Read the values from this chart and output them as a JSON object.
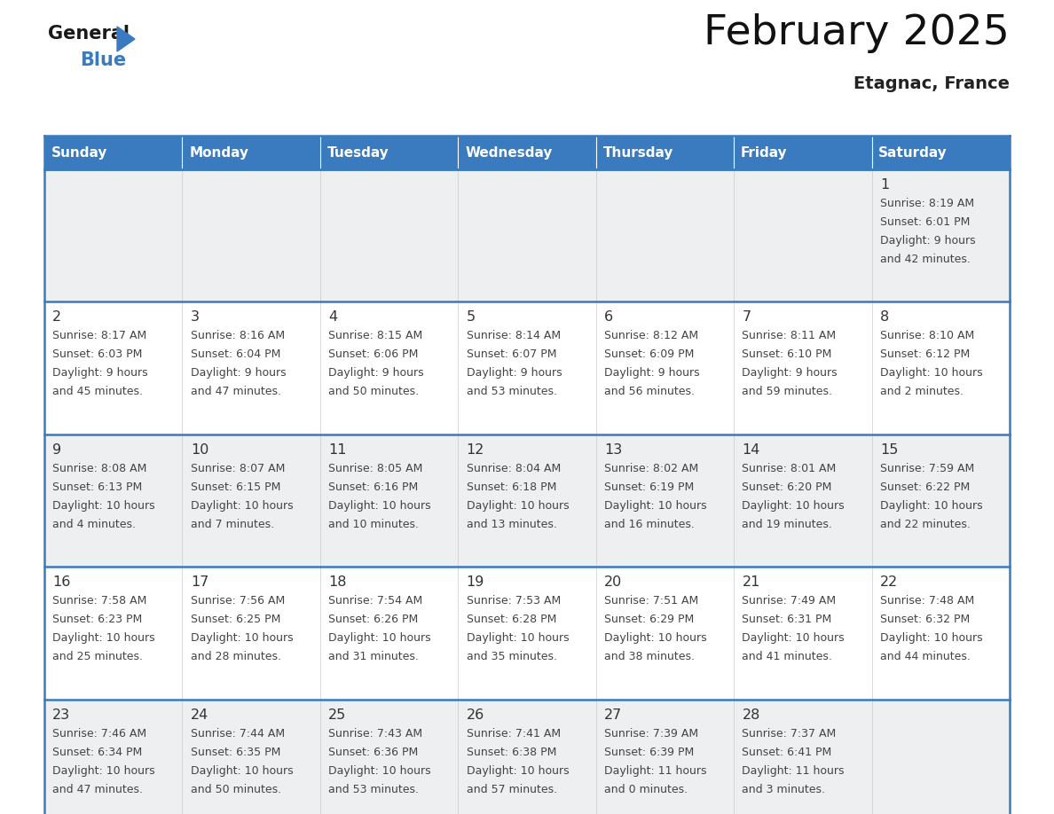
{
  "title": "February 2025",
  "subtitle": "Etagnac, France",
  "header_color": "#3a7bbf",
  "header_text_color": "#ffffff",
  "days_of_week": [
    "Sunday",
    "Monday",
    "Tuesday",
    "Wednesday",
    "Thursday",
    "Friday",
    "Saturday"
  ],
  "cell_bg_even": "#eeeff0",
  "cell_bg_odd": "#ffffff",
  "border_color": "#3a7bbf",
  "day_number_color": "#333333",
  "text_color": "#444444",
  "calendar": [
    [
      null,
      null,
      null,
      null,
      null,
      null,
      {
        "day": 1,
        "sunrise": "8:19 AM",
        "sunset": "6:01 PM",
        "daylight_line1": "Daylight: 9 hours",
        "daylight_line2": "and 42 minutes."
      }
    ],
    [
      {
        "day": 2,
        "sunrise": "8:17 AM",
        "sunset": "6:03 PM",
        "daylight_line1": "Daylight: 9 hours",
        "daylight_line2": "and 45 minutes."
      },
      {
        "day": 3,
        "sunrise": "8:16 AM",
        "sunset": "6:04 PM",
        "daylight_line1": "Daylight: 9 hours",
        "daylight_line2": "and 47 minutes."
      },
      {
        "day": 4,
        "sunrise": "8:15 AM",
        "sunset": "6:06 PM",
        "daylight_line1": "Daylight: 9 hours",
        "daylight_line2": "and 50 minutes."
      },
      {
        "day": 5,
        "sunrise": "8:14 AM",
        "sunset": "6:07 PM",
        "daylight_line1": "Daylight: 9 hours",
        "daylight_line2": "and 53 minutes."
      },
      {
        "day": 6,
        "sunrise": "8:12 AM",
        "sunset": "6:09 PM",
        "daylight_line1": "Daylight: 9 hours",
        "daylight_line2": "and 56 minutes."
      },
      {
        "day": 7,
        "sunrise": "8:11 AM",
        "sunset": "6:10 PM",
        "daylight_line1": "Daylight: 9 hours",
        "daylight_line2": "and 59 minutes."
      },
      {
        "day": 8,
        "sunrise": "8:10 AM",
        "sunset": "6:12 PM",
        "daylight_line1": "Daylight: 10 hours",
        "daylight_line2": "and 2 minutes."
      }
    ],
    [
      {
        "day": 9,
        "sunrise": "8:08 AM",
        "sunset": "6:13 PM",
        "daylight_line1": "Daylight: 10 hours",
        "daylight_line2": "and 4 minutes."
      },
      {
        "day": 10,
        "sunrise": "8:07 AM",
        "sunset": "6:15 PM",
        "daylight_line1": "Daylight: 10 hours",
        "daylight_line2": "and 7 minutes."
      },
      {
        "day": 11,
        "sunrise": "8:05 AM",
        "sunset": "6:16 PM",
        "daylight_line1": "Daylight: 10 hours",
        "daylight_line2": "and 10 minutes."
      },
      {
        "day": 12,
        "sunrise": "8:04 AM",
        "sunset": "6:18 PM",
        "daylight_line1": "Daylight: 10 hours",
        "daylight_line2": "and 13 minutes."
      },
      {
        "day": 13,
        "sunrise": "8:02 AM",
        "sunset": "6:19 PM",
        "daylight_line1": "Daylight: 10 hours",
        "daylight_line2": "and 16 minutes."
      },
      {
        "day": 14,
        "sunrise": "8:01 AM",
        "sunset": "6:20 PM",
        "daylight_line1": "Daylight: 10 hours",
        "daylight_line2": "and 19 minutes."
      },
      {
        "day": 15,
        "sunrise": "7:59 AM",
        "sunset": "6:22 PM",
        "daylight_line1": "Daylight: 10 hours",
        "daylight_line2": "and 22 minutes."
      }
    ],
    [
      {
        "day": 16,
        "sunrise": "7:58 AM",
        "sunset": "6:23 PM",
        "daylight_line1": "Daylight: 10 hours",
        "daylight_line2": "and 25 minutes."
      },
      {
        "day": 17,
        "sunrise": "7:56 AM",
        "sunset": "6:25 PM",
        "daylight_line1": "Daylight: 10 hours",
        "daylight_line2": "and 28 minutes."
      },
      {
        "day": 18,
        "sunrise": "7:54 AM",
        "sunset": "6:26 PM",
        "daylight_line1": "Daylight: 10 hours",
        "daylight_line2": "and 31 minutes."
      },
      {
        "day": 19,
        "sunrise": "7:53 AM",
        "sunset": "6:28 PM",
        "daylight_line1": "Daylight: 10 hours",
        "daylight_line2": "and 35 minutes."
      },
      {
        "day": 20,
        "sunrise": "7:51 AM",
        "sunset": "6:29 PM",
        "daylight_line1": "Daylight: 10 hours",
        "daylight_line2": "and 38 minutes."
      },
      {
        "day": 21,
        "sunrise": "7:49 AM",
        "sunset": "6:31 PM",
        "daylight_line1": "Daylight: 10 hours",
        "daylight_line2": "and 41 minutes."
      },
      {
        "day": 22,
        "sunrise": "7:48 AM",
        "sunset": "6:32 PM",
        "daylight_line1": "Daylight: 10 hours",
        "daylight_line2": "and 44 minutes."
      }
    ],
    [
      {
        "day": 23,
        "sunrise": "7:46 AM",
        "sunset": "6:34 PM",
        "daylight_line1": "Daylight: 10 hours",
        "daylight_line2": "and 47 minutes."
      },
      {
        "day": 24,
        "sunrise": "7:44 AM",
        "sunset": "6:35 PM",
        "daylight_line1": "Daylight: 10 hours",
        "daylight_line2": "and 50 minutes."
      },
      {
        "day": 25,
        "sunrise": "7:43 AM",
        "sunset": "6:36 PM",
        "daylight_line1": "Daylight: 10 hours",
        "daylight_line2": "and 53 minutes."
      },
      {
        "day": 26,
        "sunrise": "7:41 AM",
        "sunset": "6:38 PM",
        "daylight_line1": "Daylight: 10 hours",
        "daylight_line2": "and 57 minutes."
      },
      {
        "day": 27,
        "sunrise": "7:39 AM",
        "sunset": "6:39 PM",
        "daylight_line1": "Daylight: 11 hours",
        "daylight_line2": "and 0 minutes."
      },
      {
        "day": 28,
        "sunrise": "7:37 AM",
        "sunset": "6:41 PM",
        "daylight_line1": "Daylight: 11 hours",
        "daylight_line2": "and 3 minutes."
      },
      null
    ]
  ]
}
